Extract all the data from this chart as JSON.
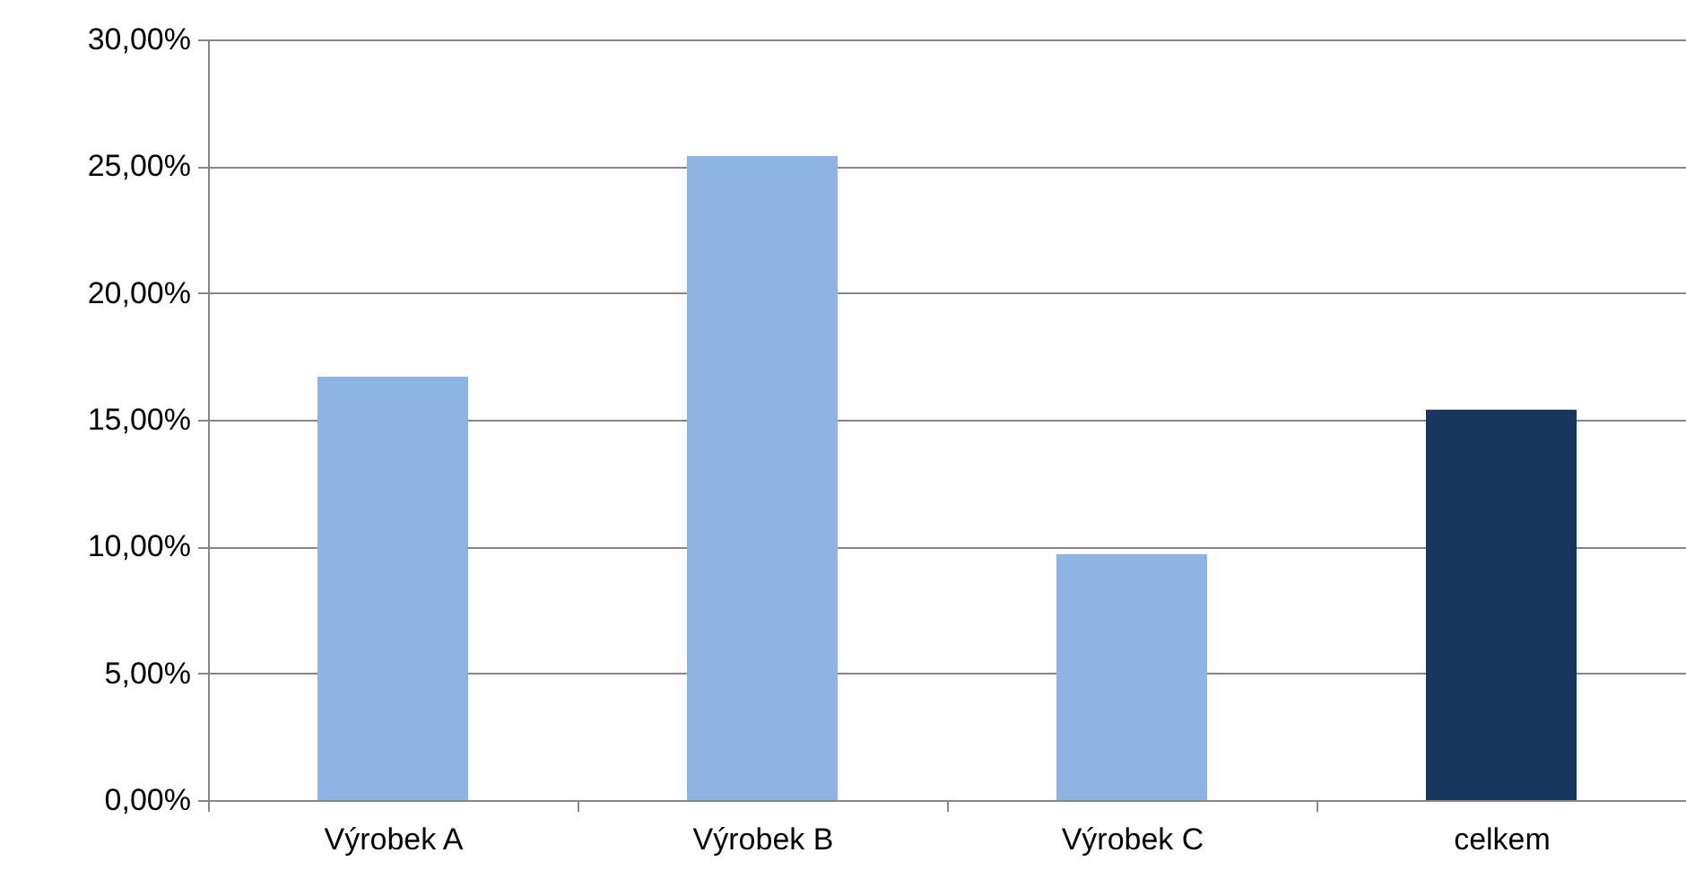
{
  "chart_data": {
    "type": "bar",
    "categories": [
      "Výrobek A",
      "Výrobek B",
      "Výrobek C",
      "celkem"
    ],
    "values": [
      16.7,
      25.4,
      9.7,
      15.4
    ],
    "colors": [
      "#8eb4e3",
      "#8eb4e3",
      "#8eb4e3",
      "#17375e"
    ],
    "ylim": [
      0,
      30
    ],
    "yticks": [
      {
        "value": 0,
        "label": "0,00%"
      },
      {
        "value": 5,
        "label": "5,00%"
      },
      {
        "value": 10,
        "label": "10,00%"
      },
      {
        "value": 15,
        "label": "15,00%"
      },
      {
        "value": 20,
        "label": "20,00%"
      },
      {
        "value": 25,
        "label": "25,00%"
      },
      {
        "value": 30,
        "label": "30,00%"
      }
    ],
    "grid": "y"
  }
}
